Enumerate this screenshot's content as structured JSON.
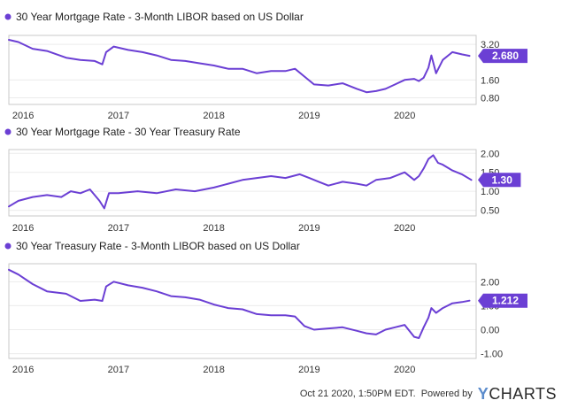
{
  "series_color": "#6b3fd4",
  "x_tick_labels": [
    "2016",
    "2017",
    "2018",
    "2019",
    "2020"
  ],
  "footer": {
    "timestamp": "Oct 21 2020, 1:50PM EDT.",
    "powered_by": "Powered by",
    "brand_y": "Y",
    "brand_rest": "CHARTS"
  },
  "chart_data": [
    {
      "type": "line",
      "title": "30 Year Mortgage Rate - 3-Month LIBOR based on US Dollar",
      "current_value_label": "2.680",
      "ylim": [
        0.5,
        3.6
      ],
      "y_ticks": [
        3.2,
        1.6,
        0.8
      ],
      "y_tick_labels": [
        "3.20",
        "1.60",
        "0.80"
      ],
      "x_range": [
        2015.85,
        2020.75
      ],
      "x_ticks": [
        2016,
        2017,
        2018,
        2019,
        2020
      ],
      "x_tick_labels_shown": true,
      "grid": "horizontal",
      "x": [
        2015.85,
        2015.95,
        2016.1,
        2016.25,
        2016.45,
        2016.6,
        2016.75,
        2016.83,
        2016.87,
        2016.95,
        2017.1,
        2017.25,
        2017.4,
        2017.55,
        2017.7,
        2017.85,
        2018.0,
        2018.15,
        2018.3,
        2018.45,
        2018.6,
        2018.75,
        2018.85,
        2018.95,
        2019.05,
        2019.2,
        2019.35,
        2019.5,
        2019.6,
        2019.7,
        2019.8,
        2019.9,
        2020.0,
        2020.1,
        2020.15,
        2020.2,
        2020.25,
        2020.28,
        2020.33,
        2020.4,
        2020.5,
        2020.6,
        2020.68
      ],
      "values": [
        3.4,
        3.3,
        3.0,
        2.9,
        2.6,
        2.5,
        2.45,
        2.3,
        2.85,
        3.1,
        2.95,
        2.85,
        2.7,
        2.5,
        2.45,
        2.35,
        2.25,
        2.1,
        2.1,
        1.9,
        2.0,
        2.0,
        2.1,
        1.75,
        1.4,
        1.35,
        1.45,
        1.2,
        1.05,
        1.1,
        1.2,
        1.4,
        1.6,
        1.65,
        1.55,
        1.7,
        2.15,
        2.7,
        1.9,
        2.5,
        2.85,
        2.75,
        2.68
      ]
    },
    {
      "type": "line",
      "title": "30 Year Mortgage Rate - 30 Year Treasury Rate",
      "current_value_label": "1.30",
      "ylim": [
        0.35,
        2.1
      ],
      "y_ticks": [
        2.0,
        1.5,
        1.0,
        0.5
      ],
      "y_tick_labels": [
        "2.00",
        "1.50",
        "1.00",
        "0.50"
      ],
      "x_range": [
        2015.85,
        2020.75
      ],
      "x_ticks": [
        2016,
        2017,
        2018,
        2019,
        2020
      ],
      "x_tick_labels_shown": true,
      "grid": "horizontal",
      "x": [
        2015.85,
        2015.95,
        2016.1,
        2016.25,
        2016.4,
        2016.5,
        2016.6,
        2016.7,
        2016.8,
        2016.85,
        2016.9,
        2017.0,
        2017.2,
        2017.4,
        2017.6,
        2017.8,
        2018.0,
        2018.15,
        2018.3,
        2018.45,
        2018.6,
        2018.75,
        2018.9,
        2019.0,
        2019.1,
        2019.2,
        2019.35,
        2019.5,
        2019.6,
        2019.7,
        2019.85,
        2020.0,
        2020.1,
        2020.15,
        2020.2,
        2020.25,
        2020.3,
        2020.35,
        2020.4,
        2020.5,
        2020.6,
        2020.7
      ],
      "values": [
        0.6,
        0.75,
        0.85,
        0.9,
        0.85,
        1.0,
        0.95,
        1.05,
        0.75,
        0.55,
        0.95,
        0.95,
        1.0,
        0.95,
        1.05,
        1.0,
        1.1,
        1.2,
        1.3,
        1.35,
        1.4,
        1.35,
        1.45,
        1.35,
        1.25,
        1.15,
        1.25,
        1.2,
        1.15,
        1.3,
        1.35,
        1.5,
        1.3,
        1.4,
        1.6,
        1.85,
        1.95,
        1.75,
        1.7,
        1.55,
        1.45,
        1.3
      ]
    },
    {
      "type": "line",
      "title": "30 Year Treasury Rate - 3-Month LIBOR based on US Dollar",
      "current_value_label": "1.212",
      "ylim": [
        -1.2,
        2.75
      ],
      "y_ticks": [
        2.0,
        1.0,
        0.0,
        -1.0
      ],
      "y_tick_labels": [
        "2.00",
        "1.00",
        "0.00",
        "-1.00"
      ],
      "x_range": [
        2015.85,
        2020.75
      ],
      "x_ticks": [
        2016,
        2017,
        2018,
        2019,
        2020
      ],
      "x_tick_labels_shown": true,
      "grid": "horizontal",
      "x": [
        2015.85,
        2015.95,
        2016.1,
        2016.25,
        2016.45,
        2016.6,
        2016.75,
        2016.83,
        2016.87,
        2016.95,
        2017.1,
        2017.25,
        2017.4,
        2017.55,
        2017.7,
        2017.85,
        2018.0,
        2018.15,
        2018.3,
        2018.45,
        2018.6,
        2018.75,
        2018.85,
        2018.95,
        2019.05,
        2019.2,
        2019.35,
        2019.5,
        2019.6,
        2019.7,
        2019.8,
        2019.9,
        2020.0,
        2020.1,
        2020.15,
        2020.2,
        2020.25,
        2020.28,
        2020.33,
        2020.4,
        2020.5,
        2020.6,
        2020.68
      ],
      "values": [
        2.5,
        2.3,
        1.9,
        1.6,
        1.5,
        1.2,
        1.25,
        1.2,
        1.8,
        2.0,
        1.85,
        1.75,
        1.6,
        1.4,
        1.35,
        1.25,
        1.05,
        0.9,
        0.85,
        0.65,
        0.6,
        0.6,
        0.55,
        0.15,
        0.0,
        0.05,
        0.1,
        -0.05,
        -0.15,
        -0.2,
        0.0,
        0.1,
        0.2,
        -0.3,
        -0.35,
        0.1,
        0.5,
        0.9,
        0.7,
        0.9,
        1.1,
        1.15,
        1.21
      ]
    }
  ]
}
